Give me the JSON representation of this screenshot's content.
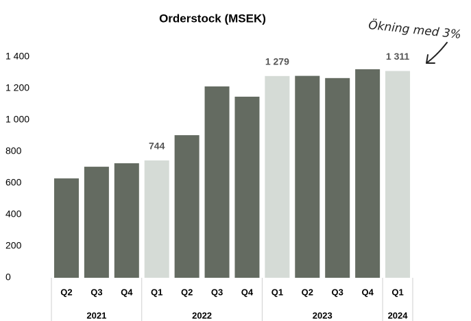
{
  "chart_data": {
    "type": "bar",
    "title": "Orderstock (MSEK)",
    "annotation": "Ökning med 3%",
    "categories": [
      "Q2",
      "Q3",
      "Q4",
      "Q1",
      "Q2",
      "Q3",
      "Q4",
      "Q1",
      "Q2",
      "Q3",
      "Q4",
      "Q1"
    ],
    "groups": [
      {
        "label": "2021",
        "span": 3
      },
      {
        "label": "2022",
        "span": 4
      },
      {
        "label": "2023",
        "span": 4
      },
      {
        "label": "2024",
        "span": 1
      }
    ],
    "values": [
      630,
      704,
      726,
      744,
      904,
      1213,
      1148,
      1279,
      1280,
      1266,
      1322,
      1311
    ],
    "value_labels": [
      null,
      null,
      null,
      "744",
      null,
      null,
      null,
      "1 279",
      null,
      null,
      null,
      "1 311"
    ],
    "colors": [
      "#646b61",
      "#646b61",
      "#646b61",
      "#d5dbd6",
      "#646b61",
      "#646b61",
      "#646b61",
      "#d5dbd6",
      "#646b61",
      "#646b61",
      "#646b61",
      "#d5dbd6"
    ],
    "ylim": [
      0,
      1400
    ],
    "yticks": [
      0,
      200,
      400,
      600,
      800,
      {
        "value": 1000,
        "label": "1 000"
      },
      {
        "value": 1200,
        "label": "1 200"
      },
      {
        "value": 1400,
        "label": "1 400"
      }
    ],
    "grid": false
  }
}
